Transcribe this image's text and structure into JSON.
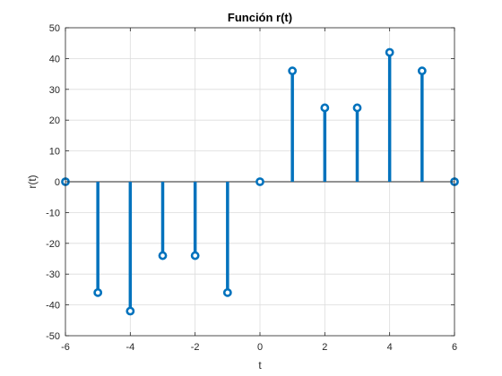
{
  "chart_data": {
    "type": "stem",
    "title": "Función r(t)",
    "xlabel": "t",
    "ylabel": "r(t)",
    "xlim": [
      -6,
      6
    ],
    "ylim": [
      -50,
      50
    ],
    "xticks": [
      -6,
      -4,
      -2,
      0,
      2,
      4,
      6
    ],
    "yticks": [
      -50,
      -40,
      -30,
      -20,
      -10,
      0,
      10,
      20,
      30,
      40,
      50
    ],
    "grid": true,
    "colors": {
      "stem": "#0072BD",
      "grid": "#dcdcdc",
      "axes": "#262626"
    },
    "x": [
      -6,
      -5,
      -4,
      -3,
      -2,
      -1,
      0,
      1,
      2,
      3,
      4,
      5,
      6
    ],
    "y": [
      0,
      -36,
      -42,
      -24,
      -24,
      -36,
      0,
      36,
      24,
      24,
      42,
      36,
      0
    ]
  }
}
